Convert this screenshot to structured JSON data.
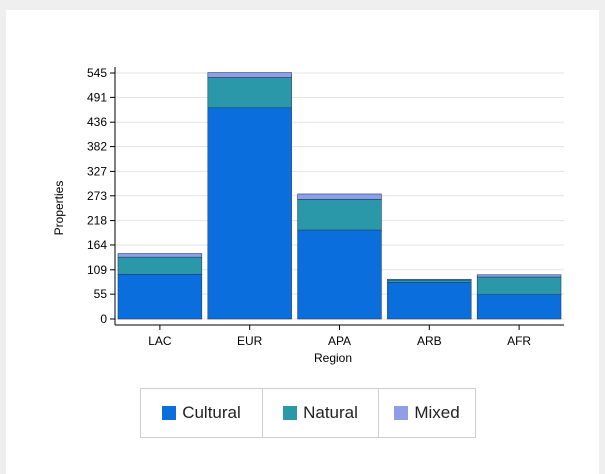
{
  "chart_data": {
    "type": "bar",
    "stacked": true,
    "title": "",
    "xlabel": "Region",
    "ylabel": "Properties",
    "categories": [
      "LAC",
      "EUR",
      "APA",
      "ARB",
      "AFR"
    ],
    "yticks": [
      "0",
      "55",
      "109",
      "164",
      "218",
      "273",
      "327",
      "382",
      "436",
      "491",
      "545"
    ],
    "ylim": [
      0,
      545
    ],
    "grid": true,
    "legend_position": "bottom",
    "series": [
      {
        "name": "Cultural",
        "color": "#0a6fdc",
        "values": [
          99,
          468,
          197,
          81,
          54
        ]
      },
      {
        "name": "Natural",
        "color": "#2a98a8",
        "values": [
          38,
          67,
          68,
          5,
          39
        ]
      },
      {
        "name": "Mixed",
        "color": "#8f9ee6",
        "values": [
          8,
          11,
          12,
          2,
          5
        ]
      }
    ]
  }
}
